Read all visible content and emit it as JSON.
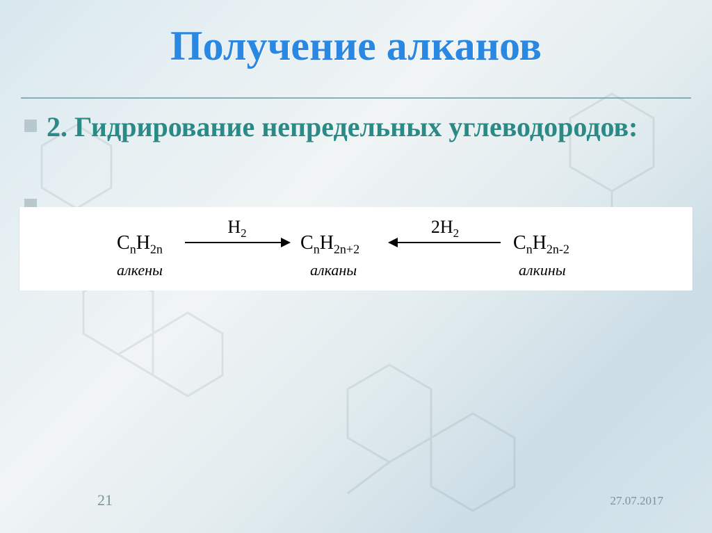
{
  "slide": {
    "title": "Получение алканов",
    "title_color": "#2b88e2",
    "subtitle": "2. Гидрирование непредельных углеводородов:",
    "subtitle_color": "#2b8a86",
    "bullet_color": "#b7c9cf",
    "background_gradient": [
      "#d8e8ef",
      "#e6eff2",
      "#f0f4f5",
      "#e2ecef",
      "#ccdde6",
      "#d6e5ec"
    ],
    "divider_color": "#6aa0ac"
  },
  "reaction": {
    "band_bg": "#ffffff",
    "species": {
      "left": {
        "formula_html": "C<sub>n</sub>H<sub>2n</sub>",
        "label": "алкены"
      },
      "center": {
        "formula_html": "C<sub>n</sub>H<sub>2n+2</sub>",
        "label": "алканы"
      },
      "right": {
        "formula_html": "C<sub>n</sub>H<sub>2n-2</sub>",
        "label": "алкины"
      }
    },
    "arrows": {
      "left_to_center": {
        "over_html": "H<sub>2</sub>",
        "direction": "right"
      },
      "right_to_center": {
        "over_html": "2H<sub>2</sub>",
        "direction": "left"
      }
    }
  },
  "footer": {
    "slide_number": "21",
    "date": "27.07.2017",
    "footer_color": "#7a9398"
  }
}
